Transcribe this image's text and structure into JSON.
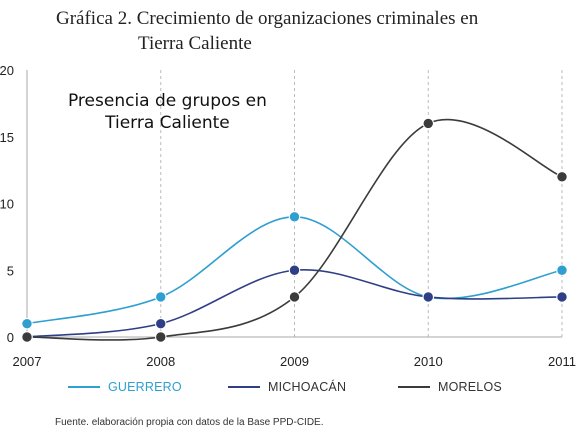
{
  "title_line1": "Gráfica 2. Crecimiento de organizaciones criminales en",
  "title_line2": "Tierra Caliente",
  "source": "Fuente. elaboración propia con datos de la Base PPD-CIDE.",
  "chart_data": {
    "type": "line",
    "title": "Gráfica 2. Crecimiento de organizaciones criminales en Tierra Caliente",
    "annotation": [
      "Presencia de grupos en",
      "Tierra Caliente"
    ],
    "xlabel": "",
    "ylabel": "",
    "x": [
      2007,
      2008,
      2009,
      2010,
      2011
    ],
    "x_tick_labels": [
      "2007",
      "2008",
      "2009",
      "2010",
      "2011"
    ],
    "ylim": [
      0,
      20
    ],
    "y_ticks": [
      0,
      5,
      10,
      15,
      20
    ],
    "y_tick_labels": [
      "0",
      "5",
      "10",
      "15",
      "20"
    ],
    "grid": "vertical dashed",
    "legend_position": "bottom",
    "smooth": true,
    "series": [
      {
        "name": "GUERRERO",
        "color": "#2e9fd0",
        "values": [
          1,
          3,
          9,
          3,
          5
        ]
      },
      {
        "name": "MICHOACÁN",
        "color": "#2f3f86",
        "values": [
          0,
          1,
          5,
          3,
          3
        ]
      },
      {
        "name": "MORELOS",
        "color": "#3b3b3b",
        "values": [
          0,
          0,
          3,
          16,
          12
        ]
      }
    ]
  }
}
